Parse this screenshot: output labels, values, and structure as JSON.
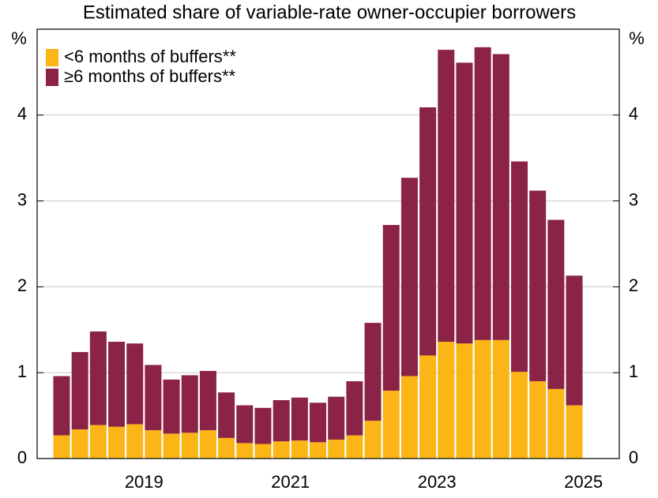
{
  "chart_data": {
    "type": "stacked_bar",
    "title": "Estimated share of variable-rate owner-occupier borrowers",
    "y_label": "%",
    "y2_label": "%",
    "categories": [
      null,
      null,
      null,
      null,
      "2019",
      null,
      null,
      null,
      null,
      null,
      null,
      null,
      "2021",
      null,
      null,
      null,
      null,
      null,
      null,
      null,
      "2023",
      null,
      null,
      null,
      null,
      null,
      null,
      null,
      "2025"
    ],
    "series": [
      {
        "name": "<6 months of buffers**",
        "color": "#fbb516",
        "values": [
          0.27,
          0.34,
          0.39,
          0.37,
          0.4,
          0.33,
          0.29,
          0.3,
          0.33,
          0.24,
          0.18,
          0.17,
          0.2,
          0.21,
          0.19,
          0.22,
          0.27,
          0.44,
          0.79,
          0.96,
          1.2,
          1.36,
          1.34,
          1.38,
          1.38,
          1.01,
          0.9,
          0.81,
          0.62
        ]
      },
      {
        "name": "≥6 months of buffers**",
        "color": "#8b2346",
        "values": [
          0.69,
          0.9,
          1.09,
          0.99,
          0.94,
          0.76,
          0.63,
          0.67,
          0.69,
          0.53,
          0.44,
          0.42,
          0.48,
          0.5,
          0.46,
          0.5,
          0.63,
          1.14,
          1.93,
          2.31,
          2.89,
          3.4,
          3.27,
          3.41,
          3.33,
          2.45,
          2.22,
          1.97,
          1.51
        ]
      }
    ],
    "ylim": [
      0,
      5
    ],
    "yticks": [
      0,
      1,
      2,
      3,
      4
    ],
    "y2lim": [
      0,
      5
    ],
    "y2ticks": [
      0,
      1,
      2,
      3,
      4
    ],
    "grid": true,
    "legend": "top-left"
  }
}
